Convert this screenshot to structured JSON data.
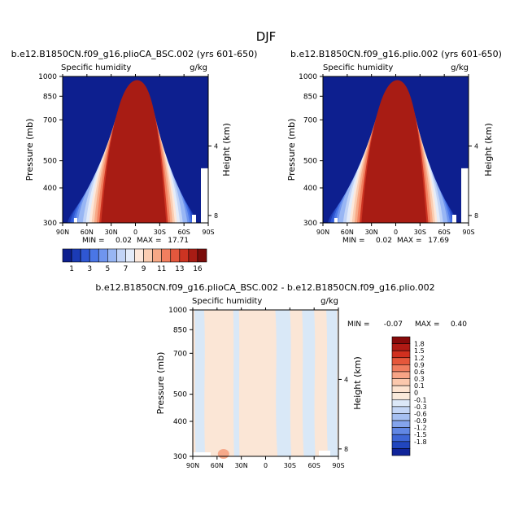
{
  "page": {
    "title": "DJF"
  },
  "chart_data": [
    {
      "type": "heatmap",
      "id": "p1",
      "title": "b.e12.B1850CN.f09_g16.plioCA_BSC.002 (yrs 601-650)",
      "left_label": "Specific humidity",
      "right_label": "g/kg",
      "ylabel": "Pressure (mb)",
      "ylabel_right": "Height (km)",
      "xlim": [
        90,
        -90
      ],
      "ylim": [
        1000,
        300
      ],
      "x_ticks": [
        90,
        60,
        30,
        0,
        -30,
        -60,
        -90
      ],
      "x_tick_labels": [
        "90N",
        "60N",
        "30N",
        "0",
        "30S",
        "60S",
        "90S"
      ],
      "y_ticks": [
        300,
        400,
        500,
        700,
        850,
        1000
      ],
      "y_tick_labels": [
        "300",
        "400",
        "500",
        "700",
        "850",
        "1000"
      ],
      "height_ticks_km": [
        8,
        4
      ],
      "height_tick_labels": [
        "8",
        "4"
      ],
      "min_label": "MIN =",
      "min_value": "0.02",
      "max_label": "MAX =",
      "max_value": "17.71",
      "contour_top_pressure": [
        {
          "level": 1,
          "ptop": 440
        },
        {
          "level": 2,
          "ptop": 480
        },
        {
          "level": 3,
          "ptop": 520
        },
        {
          "level": 4,
          "ptop": 560
        },
        {
          "level": 5,
          "ptop": 600
        },
        {
          "level": 6,
          "ptop": 640
        },
        {
          "level": 7,
          "ptop": 680
        },
        {
          "level": 8,
          "ptop": 730
        },
        {
          "level": 9,
          "ptop": 780
        },
        {
          "level": 10,
          "ptop": 820
        },
        {
          "level": 11,
          "ptop": 860
        },
        {
          "level": 12,
          "ptop": 900
        },
        {
          "level": 14,
          "ptop": 940
        },
        {
          "level": 16,
          "ptop": 970
        }
      ]
    },
    {
      "type": "heatmap",
      "id": "p2",
      "title": "b.e12.B1850CN.f09_g16.plio.002 (yrs 601-650)",
      "left_label": "Specific humidity",
      "right_label": "g/kg",
      "ylabel": "Pressure (mb)",
      "ylabel_right": "Height (km)",
      "xlim": [
        90,
        -90
      ],
      "ylim": [
        1000,
        300
      ],
      "x_ticks": [
        90,
        60,
        30,
        0,
        -30,
        -60,
        -90
      ],
      "x_tick_labels": [
        "90N",
        "60N",
        "30N",
        "0",
        "30S",
        "60S",
        "90S"
      ],
      "y_ticks": [
        300,
        400,
        500,
        700,
        850,
        1000
      ],
      "y_tick_labels": [
        "300",
        "400",
        "500",
        "700",
        "850",
        "1000"
      ],
      "height_ticks_km": [
        8,
        4
      ],
      "height_tick_labels": [
        "8",
        "4"
      ],
      "min_label": "MIN =",
      "min_value": "0.02",
      "max_label": "MAX =",
      "max_value": "17.69",
      "contour_top_pressure": [
        {
          "level": 1,
          "ptop": 440
        },
        {
          "level": 2,
          "ptop": 480
        },
        {
          "level": 3,
          "ptop": 520
        },
        {
          "level": 4,
          "ptop": 560
        },
        {
          "level": 5,
          "ptop": 600
        },
        {
          "level": 6,
          "ptop": 640
        },
        {
          "level": 7,
          "ptop": 680
        },
        {
          "level": 8,
          "ptop": 730
        },
        {
          "level": 9,
          "ptop": 780
        },
        {
          "level": 10,
          "ptop": 820
        },
        {
          "level": 11,
          "ptop": 860
        },
        {
          "level": 12,
          "ptop": 900
        },
        {
          "level": 14,
          "ptop": 940
        },
        {
          "level": 16,
          "ptop": 970
        }
      ]
    },
    {
      "type": "heatmap",
      "id": "p3",
      "title": "b.e12.B1850CN.f09_g16.plioCA_BSC.002 - b.e12.B1850CN.f09_g16.plio.002",
      "left_label": "Specific humidity",
      "right_label": "g/kg",
      "ylabel": "Pressure (mb)",
      "ylabel_right": "Height (km)",
      "xlim": [
        90,
        -90
      ],
      "ylim": [
        1000,
        300
      ],
      "x_ticks": [
        90,
        60,
        30,
        0,
        -30,
        -60,
        -90
      ],
      "x_tick_labels": [
        "90N",
        "60N",
        "30N",
        "0",
        "30S",
        "60S",
        "90S"
      ],
      "y_ticks": [
        300,
        400,
        500,
        700,
        850,
        1000
      ],
      "y_tick_labels": [
        "300",
        "400",
        "500",
        "700",
        "850",
        "1000"
      ],
      "height_ticks_km": [
        8,
        4
      ],
      "height_tick_labels": [
        "8",
        "4"
      ],
      "min_label": "MIN =",
      "min_value": "-0.07",
      "max_label": "MAX =",
      "max_value": "0.40",
      "negative_bands_lat": [
        [
          88,
          76
        ],
        [
          40,
          33
        ],
        [
          -12,
          -30
        ],
        [
          -45,
          -60
        ],
        [
          -75,
          -88
        ]
      ]
    }
  ],
  "colorbar_main": {
    "orientation": "horizontal",
    "colors": [
      "#0d1f8f",
      "#1b3bb5",
      "#2f57d3",
      "#4a76e6",
      "#6f95ef",
      "#98b6f4",
      "#c2d4f7",
      "#e4ecfa",
      "#fde8db",
      "#fbcdb2",
      "#f7a886",
      "#f27f5f",
      "#e4573d",
      "#cc3422",
      "#a81c14",
      "#7a0c0a"
    ],
    "labels": [
      "1",
      "3",
      "5",
      "7",
      "9",
      "11",
      "13",
      "16"
    ]
  },
  "colorbar_diff": {
    "orientation": "vertical",
    "colors": [
      "#870a0a",
      "#b01a14",
      "#d1301f",
      "#e5573b",
      "#f07d5f",
      "#f7a486",
      "#fbc8ad",
      "#fde3d0",
      "#faeadb",
      "#dce8f8",
      "#c4d6f6",
      "#a6c0f2",
      "#84a4ec",
      "#6187e4",
      "#3e66d6",
      "#2146be",
      "#10249a"
    ],
    "labels": [
      "1.8",
      "1.5",
      "1.2",
      "0.9",
      "0.6",
      "0.3",
      "0.1",
      "0",
      "-0.1",
      "-0.3",
      "-0.6",
      "-0.9",
      "-1.2",
      "-1.5",
      "-1.8"
    ]
  }
}
